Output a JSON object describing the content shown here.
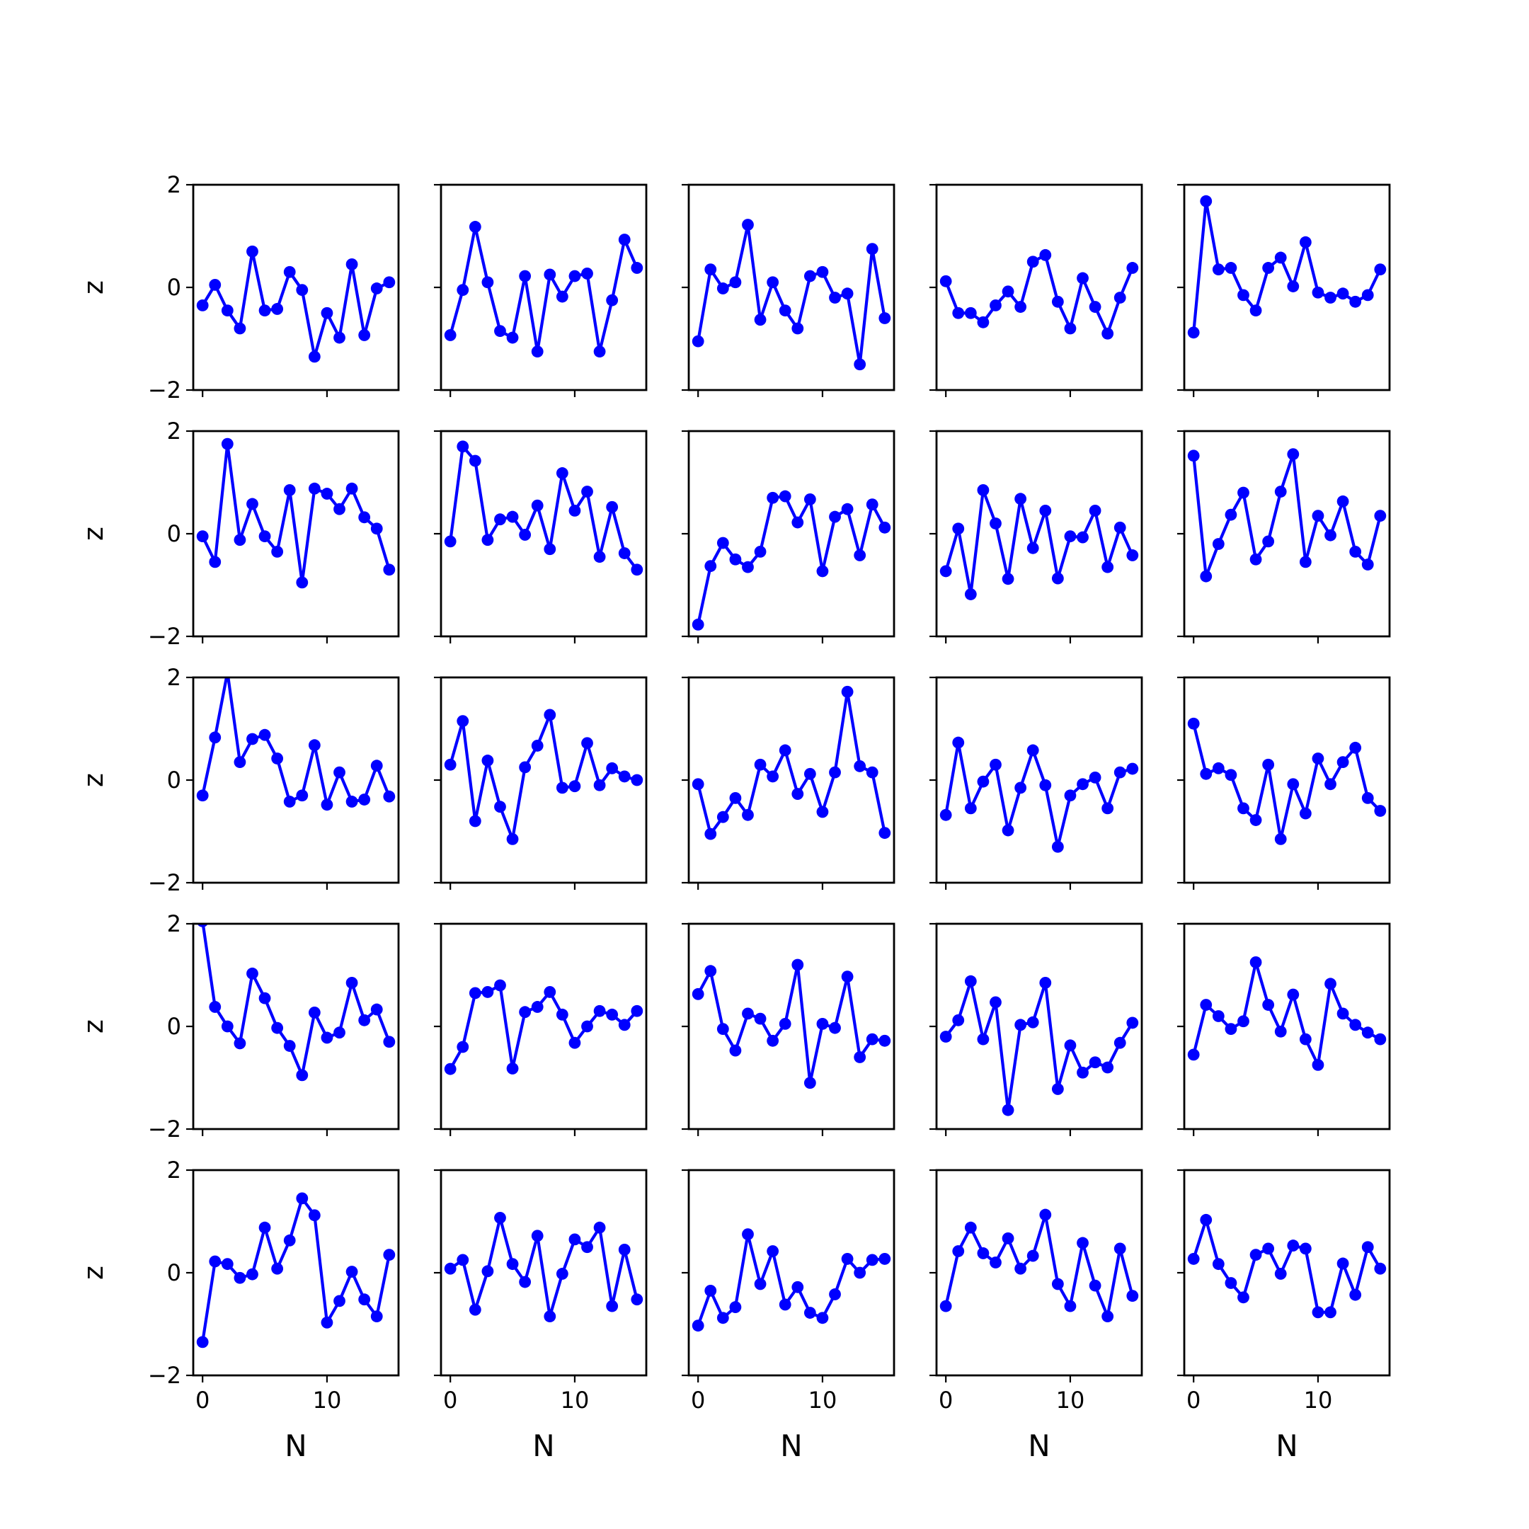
{
  "chart_data": {
    "type": "line",
    "grid": false,
    "layout": {
      "rows": 5,
      "cols": 5,
      "sharex": true,
      "sharey": true
    },
    "marker": "circle",
    "series_color": "#0000ff",
    "xlabel": "N",
    "ylabel": "z",
    "xlim": [
      -0.75,
      15.75
    ],
    "ylim": [
      -2,
      2
    ],
    "xticks": [
      0,
      10
    ],
    "xtick_labels": [
      "0",
      "10"
    ],
    "yticks": [
      -2,
      0,
      2
    ],
    "ytick_labels": [
      "−2",
      "0",
      "2"
    ],
    "x": [
      0,
      1,
      2,
      3,
      4,
      5,
      6,
      7,
      8,
      9,
      10,
      11,
      12,
      13,
      14,
      15
    ],
    "panels": [
      {
        "row": 0,
        "col": 0,
        "values": [
          -0.35,
          0.05,
          -0.45,
          -0.8,
          0.7,
          -0.45,
          -0.42,
          0.3,
          -0.05,
          -1.35,
          -0.5,
          -0.98,
          0.45,
          -0.93,
          -0.02,
          0.1
        ]
      },
      {
        "row": 0,
        "col": 1,
        "values": [
          -0.93,
          -0.05,
          1.18,
          0.1,
          -0.85,
          -0.98,
          0.22,
          -1.25,
          0.25,
          -0.18,
          0.22,
          0.27,
          -1.25,
          -0.25,
          0.93,
          0.38
        ]
      },
      {
        "row": 0,
        "col": 2,
        "values": [
          -1.05,
          0.35,
          -0.02,
          0.1,
          1.22,
          -0.63,
          0.1,
          -0.45,
          -0.8,
          0.22,
          0.3,
          -0.2,
          -0.12,
          -1.5,
          0.75,
          -0.6
        ]
      },
      {
        "row": 0,
        "col": 3,
        "values": [
          0.12,
          -0.5,
          -0.5,
          -0.68,
          -0.35,
          -0.08,
          -0.38,
          0.5,
          0.63,
          -0.28,
          -0.8,
          0.18,
          -0.38,
          -0.9,
          -0.2,
          0.38
        ]
      },
      {
        "row": 0,
        "col": 4,
        "values": [
          -0.88,
          1.68,
          0.35,
          0.38,
          -0.15,
          -0.45,
          0.38,
          0.58,
          0.02,
          0.88,
          -0.1,
          -0.2,
          -0.12,
          -0.28,
          -0.15,
          0.35
        ]
      },
      {
        "row": 1,
        "col": 0,
        "values": [
          -0.05,
          -0.55,
          1.75,
          -0.12,
          0.58,
          -0.05,
          -0.35,
          0.85,
          -0.95,
          0.88,
          0.78,
          0.48,
          0.88,
          0.32,
          0.1,
          -0.7
        ]
      },
      {
        "row": 1,
        "col": 1,
        "values": [
          -0.15,
          1.7,
          1.42,
          -0.12,
          0.28,
          0.33,
          -0.02,
          0.55,
          -0.3,
          1.18,
          0.45,
          0.82,
          -0.45,
          0.52,
          -0.38,
          -0.7
        ]
      },
      {
        "row": 1,
        "col": 2,
        "values": [
          -1.77,
          -0.63,
          -0.18,
          -0.5,
          -0.65,
          -0.35,
          0.7,
          0.73,
          0.22,
          0.67,
          -0.73,
          0.33,
          0.48,
          -0.42,
          0.57,
          0.12
        ]
      },
      {
        "row": 1,
        "col": 3,
        "values": [
          -0.73,
          0.1,
          -1.18,
          0.85,
          0.2,
          -0.88,
          0.68,
          -0.28,
          0.45,
          -0.87,
          -0.05,
          -0.07,
          0.45,
          -0.65,
          0.12,
          -0.42
        ]
      },
      {
        "row": 1,
        "col": 4,
        "values": [
          1.52,
          -0.83,
          -0.2,
          0.37,
          0.8,
          -0.5,
          -0.15,
          0.82,
          1.55,
          -0.55,
          0.35,
          -0.03,
          0.63,
          -0.35,
          -0.6,
          0.35
        ]
      },
      {
        "row": 2,
        "col": 0,
        "values": [
          -0.3,
          0.83,
          2.1,
          0.35,
          0.8,
          0.88,
          0.42,
          -0.42,
          -0.3,
          0.68,
          -0.48,
          0.15,
          -0.42,
          -0.38,
          0.28,
          -0.32
        ]
      },
      {
        "row": 2,
        "col": 1,
        "values": [
          0.3,
          1.15,
          -0.8,
          0.38,
          -0.52,
          -1.15,
          0.25,
          0.67,
          1.27,
          -0.15,
          -0.12,
          0.72,
          -0.1,
          0.23,
          0.07,
          0.0
        ]
      },
      {
        "row": 2,
        "col": 2,
        "values": [
          -0.08,
          -1.05,
          -0.72,
          -0.35,
          -0.68,
          0.3,
          0.07,
          0.58,
          -0.27,
          0.12,
          -0.62,
          0.15,
          1.72,
          0.27,
          0.15,
          -1.03
        ]
      },
      {
        "row": 2,
        "col": 3,
        "values": [
          -0.68,
          0.73,
          -0.55,
          -0.03,
          0.3,
          -0.98,
          -0.15,
          0.58,
          -0.1,
          -1.3,
          -0.3,
          -0.08,
          0.05,
          -0.55,
          0.15,
          0.22
        ]
      },
      {
        "row": 2,
        "col": 4,
        "values": [
          1.1,
          0.12,
          0.23,
          0.1,
          -0.55,
          -0.78,
          0.3,
          -1.15,
          -0.08,
          -0.65,
          0.42,
          -0.08,
          0.35,
          0.63,
          -0.35,
          -0.6
        ]
      },
      {
        "row": 3,
        "col": 0,
        "values": [
          2.05,
          0.38,
          0.0,
          -0.33,
          1.03,
          0.55,
          -0.03,
          -0.38,
          -0.95,
          0.27,
          -0.22,
          -0.12,
          0.85,
          0.12,
          0.33,
          -0.3
        ]
      },
      {
        "row": 3,
        "col": 1,
        "values": [
          -0.83,
          -0.4,
          0.65,
          0.67,
          0.8,
          -0.82,
          0.28,
          0.38,
          0.67,
          0.23,
          -0.32,
          0.0,
          0.3,
          0.23,
          0.03,
          0.3
        ]
      },
      {
        "row": 3,
        "col": 2,
        "values": [
          0.63,
          1.08,
          -0.05,
          -0.47,
          0.25,
          0.15,
          -0.28,
          0.05,
          1.2,
          -1.1,
          0.05,
          -0.03,
          0.97,
          -0.6,
          -0.25,
          -0.28
        ]
      },
      {
        "row": 3,
        "col": 3,
        "values": [
          -0.2,
          0.12,
          0.88,
          -0.25,
          0.47,
          -1.63,
          0.03,
          0.08,
          0.85,
          -1.22,
          -0.37,
          -0.9,
          -0.7,
          -0.8,
          -0.32,
          0.07
        ]
      },
      {
        "row": 3,
        "col": 4,
        "values": [
          -0.55,
          0.42,
          0.2,
          -0.05,
          0.1,
          1.25,
          0.42,
          -0.1,
          0.62,
          -0.25,
          -0.75,
          0.83,
          0.25,
          0.03,
          -0.12,
          -0.25
        ]
      },
      {
        "row": 4,
        "col": 0,
        "values": [
          -1.35,
          0.22,
          0.17,
          -0.1,
          -0.03,
          0.88,
          0.08,
          0.63,
          1.45,
          1.12,
          -0.97,
          -0.55,
          0.02,
          -0.52,
          -0.85,
          0.35
        ]
      },
      {
        "row": 4,
        "col": 1,
        "values": [
          0.08,
          0.25,
          -0.72,
          0.03,
          1.07,
          0.17,
          -0.18,
          0.72,
          -0.85,
          -0.02,
          0.65,
          0.5,
          0.88,
          -0.65,
          0.45,
          -0.52
        ]
      },
      {
        "row": 4,
        "col": 2,
        "values": [
          -1.03,
          -0.35,
          -0.88,
          -0.67,
          0.75,
          -0.22,
          0.42,
          -0.62,
          -0.28,
          -0.78,
          -0.88,
          -0.42,
          0.27,
          0.0,
          0.25,
          0.27
        ]
      },
      {
        "row": 4,
        "col": 3,
        "values": [
          -0.65,
          0.42,
          0.88,
          0.38,
          0.2,
          0.67,
          0.08,
          0.33,
          1.13,
          -0.22,
          -0.65,
          0.58,
          -0.25,
          -0.85,
          0.47,
          -0.45
        ]
      },
      {
        "row": 4,
        "col": 4,
        "values": [
          0.27,
          1.03,
          0.17,
          -0.2,
          -0.48,
          0.35,
          0.47,
          -0.02,
          0.53,
          0.47,
          -0.77,
          -0.77,
          0.18,
          -0.43,
          0.5,
          0.08
        ]
      }
    ]
  }
}
